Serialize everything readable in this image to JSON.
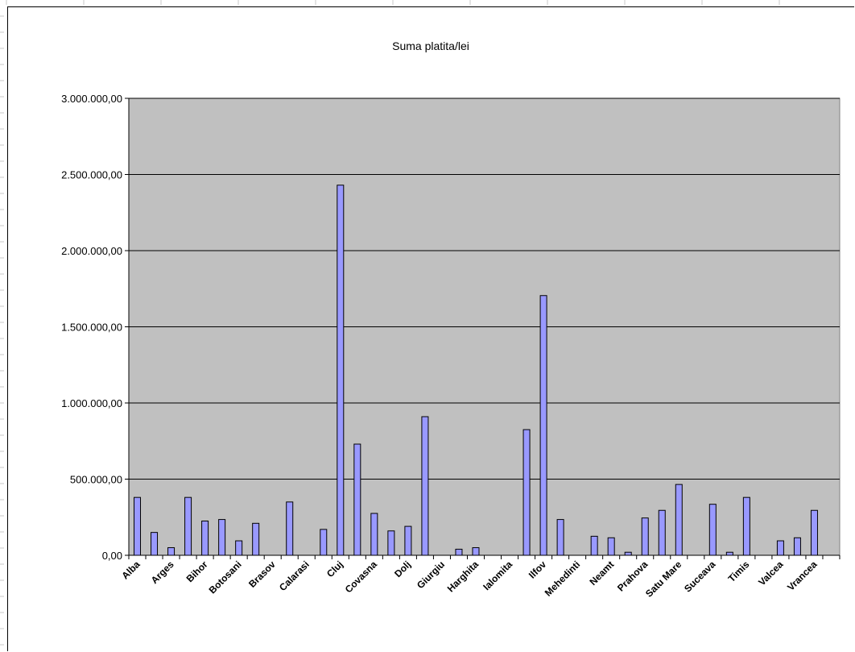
{
  "chart_data": {
    "type": "bar",
    "title": "Suma platita/lei",
    "xlabel": "",
    "ylabel": "",
    "ylim": [
      0,
      3000000
    ],
    "yticks": [
      "0,00",
      "500.000,00",
      "1.000.000,00",
      "1.500.000,00",
      "2.000.000,00",
      "2.500.000,00",
      "3.000.000,00"
    ],
    "grid": true,
    "legend": "none",
    "colors": {
      "plot_bg": "#c0c0c0",
      "bar_fill": "#9999ff",
      "bar_stroke": "#000000",
      "grid": "#000000"
    },
    "categories": [
      "Alba",
      "",
      "Arges",
      "",
      "Bihor",
      "",
      "Botosani",
      "",
      "Brasov",
      "",
      "Calarasi",
      "",
      "Cluj",
      "",
      "Covasna",
      "",
      "Dolj",
      "",
      "Giurgiu",
      "",
      "Harghita",
      "",
      "Ialomita",
      "",
      "Ilfov",
      "",
      "Mehedinti",
      "",
      "Neamt",
      "",
      "Prahova",
      "",
      "Satu Mare",
      "",
      "Suceava",
      "",
      "Timis",
      "",
      "Valcea",
      "",
      "Vrancea",
      ""
    ],
    "values": [
      380000,
      150000,
      50000,
      380000,
      225000,
      235000,
      95000,
      210000,
      0,
      350000,
      0,
      170000,
      2430000,
      730000,
      275000,
      160000,
      190000,
      910000,
      0,
      40000,
      50000,
      0,
      0,
      825000,
      1705000,
      235000,
      0,
      125000,
      115000,
      20000,
      245000,
      295000,
      465000,
      0,
      335000,
      20000,
      380000,
      0,
      95000,
      115000,
      295000,
      0
    ]
  }
}
